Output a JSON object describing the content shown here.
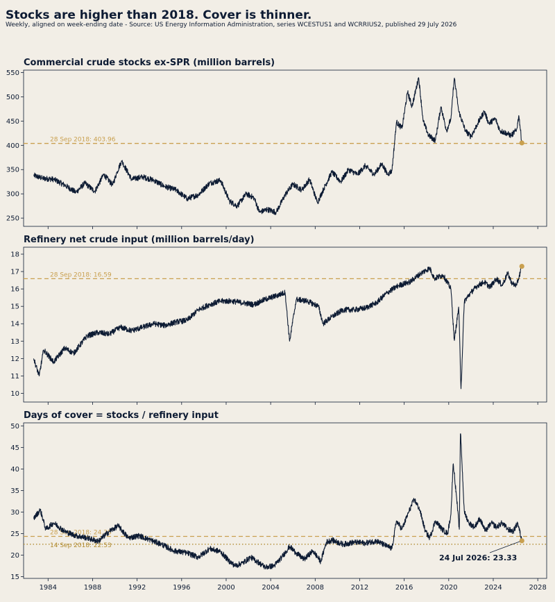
{
  "header": {
    "title": "Stocks are higher than 2018. Cover is thinner.",
    "subtitle": "Weekly, aligned on week-ending date - Source: US Energy Information Administration, series WCESTUS1 and WCRRIUS2, published 29 July 2026"
  },
  "colors": {
    "line": "#0d1b33",
    "reference": "#c9a04f",
    "reference_dotted": "#b08a2e",
    "background": "#f2eee6"
  },
  "chart_data": [
    {
      "type": "line",
      "title": "Commercial crude stocks ex-SPR (million barrels)",
      "xlim": [
        1981.8,
        2028.8
      ],
      "ylim": [
        233,
        555
      ],
      "yticks": [
        250,
        300,
        350,
        400,
        450,
        500,
        550
      ],
      "xticks": [
        1984,
        1988,
        1992,
        1996,
        2000,
        2004,
        2008,
        2012,
        2016,
        2020,
        2024,
        2028
      ],
      "grid": false,
      "series": [
        {
          "x": [
            1982.7,
            1983.5,
            1984.5,
            1985.5,
            1986.5,
            1987.3,
            1988.2,
            1989.0,
            1989.8,
            1990.2,
            1990.6,
            1991.5,
            1992.5,
            1993.5,
            1994.5,
            1995.5,
            1996.5,
            1997.5,
            1998.5,
            1999.5,
            2000.3,
            2001.0,
            2001.8,
            2002.5,
            2003.0,
            2003.7,
            2004.5,
            2005.3,
            2006.0,
            2006.8,
            2007.5,
            2008.2,
            2008.8,
            2009.5,
            2010.3,
            2011.0,
            2011.8,
            2012.5,
            2013.3,
            2014.0,
            2014.5,
            2014.9,
            2015.3,
            2015.8,
            2016.3,
            2016.7,
            2017.3,
            2017.7,
            2018.2,
            2018.8,
            2019.3,
            2019.8,
            2020.2,
            2020.5,
            2020.9,
            2021.5,
            2022.0,
            2022.6,
            2023.2,
            2023.6,
            2024.2,
            2024.6,
            2025.2,
            2025.6,
            2026.1,
            2026.3,
            2026.57
          ],
          "y": [
            338,
            332,
            330,
            318,
            303,
            322,
            305,
            340,
            318,
            345,
            368,
            330,
            335,
            328,
            315,
            308,
            290,
            298,
            322,
            328,
            285,
            275,
            300,
            292,
            262,
            268,
            262,
            298,
            320,
            308,
            330,
            282,
            312,
            345,
            325,
            350,
            340,
            358,
            340,
            362,
            340,
            348,
            448,
            435,
            510,
            480,
            540,
            450,
            420,
            410,
            480,
            430,
            455,
            540,
            470,
            430,
            418,
            445,
            470,
            445,
            455,
            430,
            425,
            420,
            432,
            462,
            404.9
          ]
        }
      ],
      "reference_lines": [
        {
          "value": 403.96,
          "label": "28 Sep 2018: 403.96",
          "style": "dashed"
        }
      ],
      "endpoint": {
        "x": 2026.57,
        "y": 404.9
      }
    },
    {
      "type": "line",
      "title": "Refinery net crude input (million barrels/day)",
      "xlim": [
        1981.8,
        2028.8
      ],
      "ylim": [
        9.5,
        18.4
      ],
      "yticks": [
        10,
        11,
        12,
        13,
        14,
        15,
        16,
        17,
        18
      ],
      "xticks": [
        1984,
        1988,
        1992,
        1996,
        2000,
        2004,
        2008,
        2012,
        2016,
        2020,
        2024,
        2028
      ],
      "grid": false,
      "series": [
        {
          "x": [
            1982.7,
            1983.2,
            1983.6,
            1984.5,
            1985.5,
            1986.3,
            1987.5,
            1988.5,
            1989.5,
            1990.5,
            1991.5,
            1992.5,
            1993.5,
            1994.5,
            1995.5,
            1996.5,
            1997.5,
            1998.5,
            1999.5,
            2000.5,
            2001.5,
            2002.5,
            2003.5,
            2004.5,
            2005.3,
            2005.7,
            2006.3,
            2007.3,
            2008.3,
            2008.7,
            2009.5,
            2010.5,
            2011.5,
            2012.5,
            2013.5,
            2014.5,
            2015.5,
            2016.5,
            2017.5,
            2018.3,
            2018.7,
            2019.5,
            2020.2,
            2020.5,
            2020.9,
            2021.1,
            2021.4,
            2022.0,
            2022.6,
            2023.2,
            2023.7,
            2024.3,
            2024.8,
            2025.3,
            2025.7,
            2026.1,
            2026.57
          ],
          "y": [
            12.0,
            11.0,
            12.5,
            11.8,
            12.6,
            12.3,
            13.3,
            13.5,
            13.4,
            13.8,
            13.6,
            13.8,
            14.0,
            13.9,
            14.1,
            14.2,
            14.8,
            15.1,
            15.3,
            15.3,
            15.2,
            15.1,
            15.4,
            15.6,
            15.8,
            13.0,
            15.4,
            15.3,
            15.0,
            14.0,
            14.4,
            14.8,
            14.8,
            14.9,
            15.2,
            15.8,
            16.2,
            16.4,
            16.9,
            17.2,
            16.6,
            16.8,
            16.0,
            13.0,
            15.0,
            10.2,
            15.3,
            15.8,
            16.2,
            16.4,
            16.1,
            16.6,
            16.2,
            16.9,
            16.3,
            16.2,
            17.3
          ]
        }
      ],
      "reference_lines": [
        {
          "value": 16.59,
          "label": "28 Sep 2018: 16.59",
          "style": "dashed"
        }
      ],
      "endpoint": {
        "x": 2026.57,
        "y": 17.3
      }
    },
    {
      "type": "line",
      "title": "Days of cover  =  stocks / refinery input",
      "xlim": [
        1981.8,
        2028.8
      ],
      "ylim": [
        14.6,
        50.7
      ],
      "yticks": [
        15,
        20,
        25,
        30,
        35,
        40,
        45,
        50
      ],
      "xticks": [
        1984,
        1988,
        1992,
        1996,
        2000,
        2004,
        2008,
        2012,
        2016,
        2020,
        2024,
        2028
      ],
      "xticklabels": [
        "1984",
        "1988",
        "1992",
        "1996",
        "2000",
        "2004",
        "2008",
        "2012",
        "2016",
        "2020",
        "2024",
        "2028"
      ],
      "grid": false,
      "series": [
        {
          "x": [
            1982.7,
            1983.3,
            1983.8,
            1984.5,
            1985.5,
            1986.5,
            1987.5,
            1988.5,
            1989.5,
            1990.3,
            1991.2,
            1992.2,
            1993.2,
            1994.2,
            1995.3,
            1996.5,
            1997.5,
            1998.5,
            1999.5,
            2000.2,
            2000.8,
            2001.5,
            2002.2,
            2002.8,
            2003.5,
            2004.3,
            2005.0,
            2005.7,
            2006.3,
            2007.0,
            2007.8,
            2008.5,
            2009.0,
            2009.5,
            2010.5,
            2011.5,
            2012.5,
            2013.5,
            2014.5,
            2014.9,
            2015.3,
            2015.8,
            2016.4,
            2016.9,
            2017.4,
            2017.9,
            2018.3,
            2018.8,
            2019.4,
            2019.9,
            2020.2,
            2020.4,
            2020.7,
            2020.95,
            2021.05,
            2021.4,
            2021.8,
            2022.3,
            2022.8,
            2023.3,
            2023.8,
            2024.3,
            2024.8,
            2025.3,
            2025.8,
            2026.2,
            2026.57
          ],
          "y": [
            28.5,
            30.5,
            26.0,
            27.5,
            25.5,
            24.5,
            24.0,
            23.2,
            25.5,
            26.8,
            24.0,
            24.5,
            23.5,
            22.5,
            21.0,
            20.5,
            19.5,
            21.5,
            20.8,
            18.8,
            17.5,
            18.2,
            19.5,
            18.5,
            17.2,
            17.5,
            19.5,
            22.0,
            20.5,
            19.0,
            21.0,
            18.5,
            23.0,
            23.5,
            22.5,
            23.0,
            22.8,
            23.3,
            22.0,
            21.5,
            28.0,
            26.0,
            30.0,
            33.0,
            30.5,
            25.5,
            24.0,
            28.0,
            26.0,
            25.0,
            29.5,
            41.5,
            33.5,
            26.0,
            49.0,
            30.0,
            27.5,
            26.5,
            28.5,
            25.5,
            27.5,
            26.5,
            27.5,
            26.0,
            25.5,
            27.5,
            23.33
          ]
        }
      ],
      "reference_lines": [
        {
          "value": 24.35,
          "label": "28 Sep 2018: 24.35",
          "style": "dashed"
        },
        {
          "value": 22.53,
          "label": "14 Sep 2018: 22.53",
          "style": "dotted"
        }
      ],
      "endpoint": {
        "x": 2026.57,
        "y": 23.33
      },
      "annotation": {
        "text": "24 Jul 2026: 23.33",
        "x": 2026.57,
        "y": 23.33
      }
    }
  ]
}
